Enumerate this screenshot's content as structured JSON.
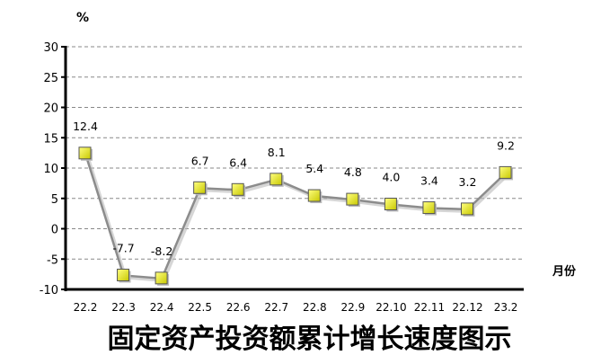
{
  "chart_data": {
    "type": "line",
    "title": "固定资产投资额累计增长速度图示",
    "ylabel": "%",
    "xlabel": "月份",
    "categories": [
      "22.2",
      "22.3",
      "22.4",
      "22.5",
      "22.6",
      "22.7",
      "22.8",
      "22.9",
      "22.10",
      "22.11",
      "22.12",
      "23.2"
    ],
    "values": [
      12.4,
      -7.7,
      -8.2,
      6.7,
      6.4,
      8.1,
      5.4,
      4.8,
      4.0,
      3.4,
      3.2,
      9.2
    ],
    "data_labels": [
      "12.4",
      "-7.7",
      "-8.2",
      "6.7",
      "6.4",
      "8.1",
      "5.4",
      "4.8",
      "4.0",
      "3.4",
      "3.2",
      "9.2"
    ],
    "ylim": [
      -10,
      30
    ],
    "yticks": [
      -10,
      -5,
      0,
      5,
      10,
      15,
      20,
      25,
      30
    ],
    "grid": "horizontal dashed",
    "line_color": "#8c8c8c",
    "marker": "square",
    "marker_color": "#e8e800"
  }
}
